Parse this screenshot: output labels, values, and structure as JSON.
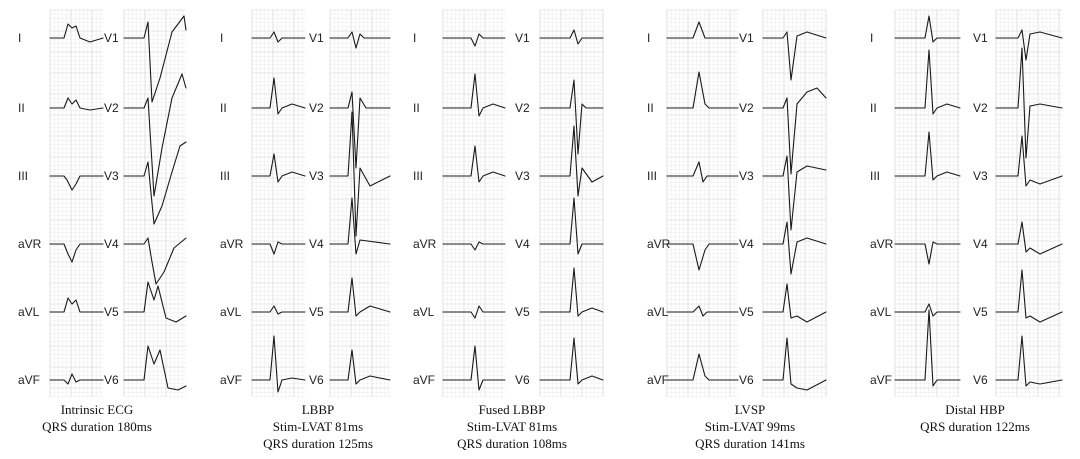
{
  "panels": [
    {
      "id": "intrinsic",
      "caption": [
        "Intrinsic  ECG",
        "QRS duration  180ms"
      ],
      "morph": "wideLBBB",
      "limb_leads": [
        "I",
        "II",
        "III",
        "aVR",
        "aVL",
        "aVF"
      ],
      "chest_leads": [
        "V1",
        "V2",
        "V3",
        "V4",
        "V5",
        "V6"
      ]
    },
    {
      "id": "lbbp",
      "caption": [
        "LBBP",
        "Stim-LVAT  81ms",
        "QRS duration  125ms"
      ],
      "morph": "lbbp",
      "limb_leads": [
        "I",
        "II",
        "III",
        "aVR",
        "aVL",
        "aVF"
      ],
      "chest_leads": [
        "V1",
        "V2",
        "V3",
        "V4",
        "V5",
        "V6"
      ]
    },
    {
      "id": "fused-lbbp",
      "caption": [
        "Fused LBBP",
        "Stim-LVAT  81ms",
        "QRS duration  108ms"
      ],
      "morph": "fused",
      "limb_leads": [
        "I",
        "II",
        "III",
        "aVR",
        "aVL",
        "aVF"
      ],
      "chest_leads": [
        "V1",
        "V2",
        "V3",
        "V4",
        "V5",
        "V6"
      ]
    },
    {
      "id": "lvsp",
      "caption": [
        "LVSP",
        "Stim-LVAT  99ms",
        "QRS duration  141ms"
      ],
      "morph": "lvsp",
      "limb_leads": [
        "I",
        "II",
        "III",
        "aVR",
        "aVL",
        "aVF"
      ],
      "chest_leads": [
        "V1",
        "V2",
        "V3",
        "V4",
        "V5",
        "V6"
      ]
    },
    {
      "id": "distal-hbp",
      "caption": [
        "Distal  HBP",
        "QRS duration  122ms"
      ],
      "morph": "hbp",
      "limb_leads": [
        "I",
        "II",
        "III",
        "aVR",
        "aVL",
        "aVF"
      ],
      "chest_leads": [
        "V1",
        "V2",
        "V3",
        "V4",
        "V5",
        "V6"
      ]
    }
  ]
}
